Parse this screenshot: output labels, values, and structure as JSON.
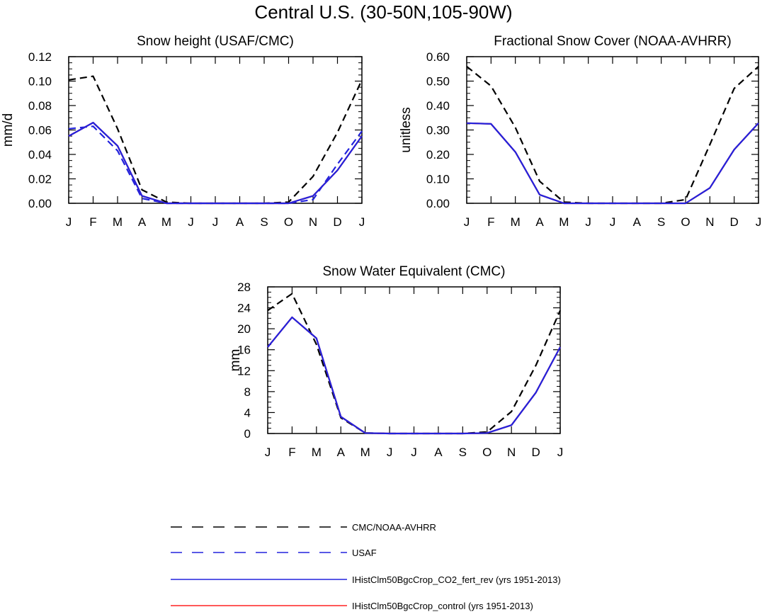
{
  "page_title": "Central U.S. (30-50N,105-90W)",
  "colors": {
    "obs": "#000000",
    "usaf": "#2222dd",
    "co2_fert": "#2222dd",
    "control": "#ff2222"
  },
  "legend": {
    "entries": [
      {
        "label": "CMC/NOAA-AVHRR",
        "color": "#000000",
        "dash": "dashed"
      },
      {
        "label": "USAF",
        "color": "#2222dd",
        "dash": "dashed"
      },
      {
        "label": "IHistClm50BgcCrop_CO2_fert_rev (yrs 1951-2013)",
        "color": "#2222dd",
        "dash": "solid"
      },
      {
        "label": "IHistClm50BgcCrop_control (yrs 1951-2013)",
        "color": "#ff2222",
        "dash": "solid"
      }
    ]
  },
  "chart_data": [
    {
      "type": "line",
      "title": "Snow height (USAF/CMC)",
      "xlabel": "",
      "ylabel": "mm/d",
      "categories": [
        "J",
        "F",
        "M",
        "A",
        "M",
        "J",
        "J",
        "A",
        "S",
        "O",
        "N",
        "D",
        "J"
      ],
      "ylim": [
        0,
        0.12
      ],
      "yticks": [
        "0.00",
        "0.02",
        "0.04",
        "0.06",
        "0.08",
        "0.10",
        "0.12"
      ],
      "series": [
        {
          "name": "CMC/NOAA-AVHRR",
          "color": "#000000",
          "dash": "dashed",
          "values": [
            0.101,
            0.104,
            0.061,
            0.011,
            0.001,
            0,
            0,
            0,
            0,
            0.001,
            0.022,
            0.058,
            0.101
          ]
        },
        {
          "name": "USAF",
          "color": "#2222dd",
          "dash": "dashed",
          "values": [
            0.061,
            0.063,
            0.043,
            0.004,
            0.0,
            0,
            0,
            0,
            0,
            0.0,
            0.003,
            0.032,
            0.059
          ]
        },
        {
          "name": "IHistClm50BgcCrop_control (yrs 1951-2013)",
          "color": "#ff2222",
          "dash": "solid",
          "values": [
            0.055,
            0.066,
            0.047,
            0.006,
            0.0,
            0,
            0,
            0,
            0,
            0.0,
            0.006,
            0.027,
            0.055
          ]
        },
        {
          "name": "IHistClm50BgcCrop_CO2_fert_rev (yrs 1951-2013)",
          "color": "#2222dd",
          "dash": "solid",
          "values": [
            0.055,
            0.066,
            0.047,
            0.006,
            0.0,
            0,
            0,
            0,
            0,
            0.0,
            0.006,
            0.027,
            0.055
          ]
        }
      ]
    },
    {
      "type": "line",
      "title": "Fractional Snow Cover (NOAA-AVHRR)",
      "xlabel": "",
      "ylabel": "unitless",
      "categories": [
        "J",
        "F",
        "M",
        "A",
        "M",
        "J",
        "J",
        "A",
        "S",
        "O",
        "N",
        "D",
        "J"
      ],
      "ylim": [
        0,
        0.6
      ],
      "yticks": [
        "0.00",
        "0.10",
        "0.20",
        "0.30",
        "0.40",
        "0.50",
        "0.60"
      ],
      "series": [
        {
          "name": "CMC/NOAA-AVHRR",
          "color": "#000000",
          "dash": "dashed",
          "values": [
            0.56,
            0.48,
            0.31,
            0.09,
            0.005,
            0,
            0,
            0,
            0,
            0.015,
            0.24,
            0.47,
            0.56
          ]
        },
        {
          "name": "IHistClm50BgcCrop_control (yrs 1951-2013)",
          "color": "#ff2222",
          "dash": "solid",
          "values": [
            0.328,
            0.325,
            0.21,
            0.035,
            0.0,
            0,
            0,
            0,
            0,
            0.0,
            0.063,
            0.22,
            0.328
          ]
        },
        {
          "name": "IHistClm50BgcCrop_CO2_fert_rev (yrs 1951-2013)",
          "color": "#2222dd",
          "dash": "solid",
          "values": [
            0.328,
            0.325,
            0.21,
            0.035,
            0.0,
            0,
            0,
            0,
            0,
            0.0,
            0.063,
            0.22,
            0.328
          ]
        }
      ]
    },
    {
      "type": "line",
      "title": "Snow Water Equivalent (CMC)",
      "xlabel": "",
      "ylabel": "mm",
      "categories": [
        "J",
        "F",
        "M",
        "A",
        "M",
        "J",
        "J",
        "A",
        "S",
        "O",
        "N",
        "D",
        "J"
      ],
      "ylim": [
        0,
        28
      ],
      "yticks": [
        "0",
        "4",
        "8",
        "12",
        "16",
        "20",
        "24",
        "28"
      ],
      "series": [
        {
          "name": "CMC/NOAA-AVHRR",
          "color": "#000000",
          "dash": "dashed",
          "values": [
            23.5,
            26.7,
            17.0,
            3.0,
            0.1,
            0,
            0,
            0,
            0,
            0.3,
            4.2,
            13.0,
            23.5
          ]
        },
        {
          "name": "IHistClm50BgcCrop_control (yrs 1951-2013)",
          "color": "#ff2222",
          "dash": "solid",
          "values": [
            16.5,
            22.2,
            18.2,
            3.2,
            0.1,
            0,
            0,
            0,
            0,
            0.1,
            1.6,
            7.8,
            16.5
          ]
        },
        {
          "name": "IHistClm50BgcCrop_CO2_fert_rev (yrs 1951-2013)",
          "color": "#2222dd",
          "dash": "solid",
          "values": [
            16.5,
            22.2,
            18.2,
            3.2,
            0.1,
            0,
            0,
            0,
            0,
            0.1,
            1.6,
            7.8,
            16.5
          ]
        }
      ]
    }
  ]
}
